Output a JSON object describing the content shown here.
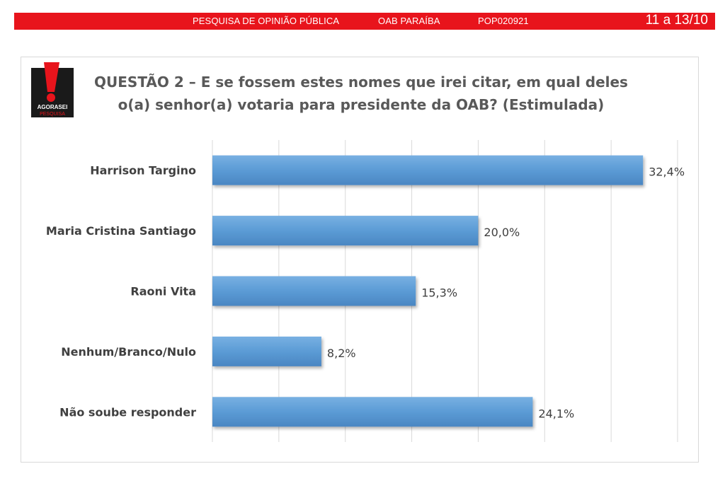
{
  "header": {
    "survey_title": "PESQUISA DE OPINIÃO PÚBLICA",
    "region": "OAB PARAÍBA",
    "code": "POP020921",
    "date_range": "11 a 13/10"
  },
  "logo": {
    "text_top": "AGORASEI",
    "text_bottom": "PESQUISA",
    "colors": {
      "red": "#e8141c",
      "dark": "#1a1a1a"
    }
  },
  "chart_data": {
    "type": "bar",
    "orientation": "horizontal",
    "title_line1": "QUESTÃO 2 – E se fossem estes nomes que irei citar, em qual deles",
    "title_line2": "o(a) senhor(a) votaria para presidente da OAB? (Estimulada)",
    "categories": [
      "Harrison Targino",
      "Maria Cristina Santiago",
      "Raoni Vita",
      "Nenhum/Branco/Nulo",
      "Não soube responder"
    ],
    "values": [
      32.4,
      20.0,
      15.3,
      8.2,
      24.1
    ],
    "value_labels": [
      "32,4%",
      "20,0%",
      "15,3%",
      "8,2%",
      "24,1%"
    ],
    "xlim": [
      0,
      35
    ],
    "grid": true,
    "bar_color": "#5b9bd5"
  }
}
